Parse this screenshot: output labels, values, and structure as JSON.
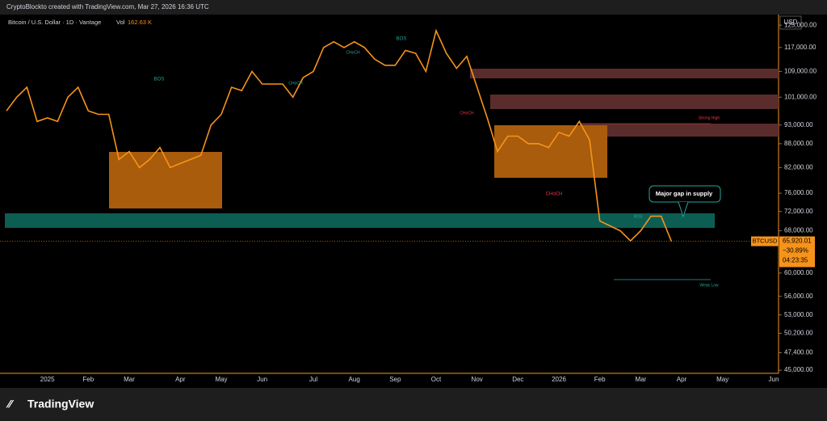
{
  "header": {
    "credit": "CryptoBlockto created with TradingView.com, Mar 27, 2026 16:36 UTC",
    "symbol": "Bitcoin / U.S. Dollar · 1D · Vantage",
    "vol_label": "Vol",
    "vol_value": "162.63 K",
    "currency": "USD",
    "brand": "TradingView"
  },
  "chart_data": {
    "type": "line",
    "color": "#f7931a",
    "log_scale": true,
    "categories": [
      null,
      null,
      null,
      null,
      "2025",
      null,
      null,
      null,
      "Feb",
      null,
      null,
      null,
      "Mar",
      null,
      null,
      null,
      null,
      "Apr",
      null,
      null,
      null,
      "May",
      null,
      null,
      null,
      "Jun",
      null,
      null,
      null,
      null,
      "Jul",
      null,
      null,
      null,
      "Aug",
      null,
      null,
      null,
      "Sep",
      null,
      null,
      null,
      "Oct",
      null,
      null,
      null,
      "Nov",
      null,
      null,
      null,
      "Dec",
      null,
      null,
      null,
      "2026",
      null,
      null,
      null,
      "Feb",
      null,
      null,
      null,
      "Mar",
      null,
      null,
      null,
      "Apr",
      null,
      null,
      null,
      "May",
      null,
      null,
      null,
      null,
      "Jun"
    ],
    "values": [
      97000,
      101000,
      104000,
      94000,
      95000,
      94000,
      101000,
      104000,
      97000,
      96000,
      96000,
      84000,
      86000,
      82000,
      84000,
      87000,
      82000,
      83000,
      84000,
      85000,
      93000,
      96000,
      104000,
      103000,
      109000,
      105000,
      105000,
      105000,
      101000,
      107000,
      109000,
      117000,
      119000,
      117000,
      119000,
      117000,
      113000,
      111000,
      111000,
      116000,
      115000,
      109000,
      123000,
      115000,
      110000,
      114000,
      104000,
      95000,
      86000,
      90000,
      90000,
      88000,
      88000,
      87000,
      91000,
      90000,
      94000,
      89000,
      70000,
      69000,
      68000,
      66000,
      68000,
      71000,
      71000,
      65920.01,
      null,
      null,
      null,
      null,
      null,
      null,
      null,
      null,
      null,
      null
    ],
    "ylim": [
      44800,
      129000
    ],
    "yticks": [
      {
        "value": 125000,
        "label": "125,000.00"
      },
      {
        "value": 117000,
        "label": "117,000.00"
      },
      {
        "value": 109000,
        "label": "109,000.00"
      },
      {
        "value": 101000,
        "label": "101,000.00"
      },
      {
        "value": 93000,
        "label": "93,000.00"
      },
      {
        "value": 88000,
        "label": "88,000.00"
      },
      {
        "value": 82000,
        "label": "82,000.00"
      },
      {
        "value": 76000,
        "label": "76,000.00"
      },
      {
        "value": 72000,
        "label": "72,000.00"
      },
      {
        "value": 68000,
        "label": "68,000.00"
      },
      {
        "value": 60000,
        "label": "60,000.00"
      },
      {
        "value": 56000,
        "label": "56,000.00"
      },
      {
        "value": 53000,
        "label": "53,000.00"
      },
      {
        "value": 50200,
        "label": "50,200.00"
      },
      {
        "value": 47400,
        "label": "47,400.00"
      },
      {
        "value": 45000,
        "label": "45,000.00"
      }
    ],
    "last_price": {
      "value": 65920.01,
      "label": "65,920.01",
      "name": "BTCUSD",
      "change": "−30.89%",
      "countdown": "04:23:35"
    },
    "annotations": [
      "BOS",
      "BOS",
      "BOS",
      "CHoCH",
      "CHoCH",
      "CHoCH",
      "CHoCH",
      "Strong High",
      "Weak Low",
      "Major  gap in supply"
    ]
  }
}
